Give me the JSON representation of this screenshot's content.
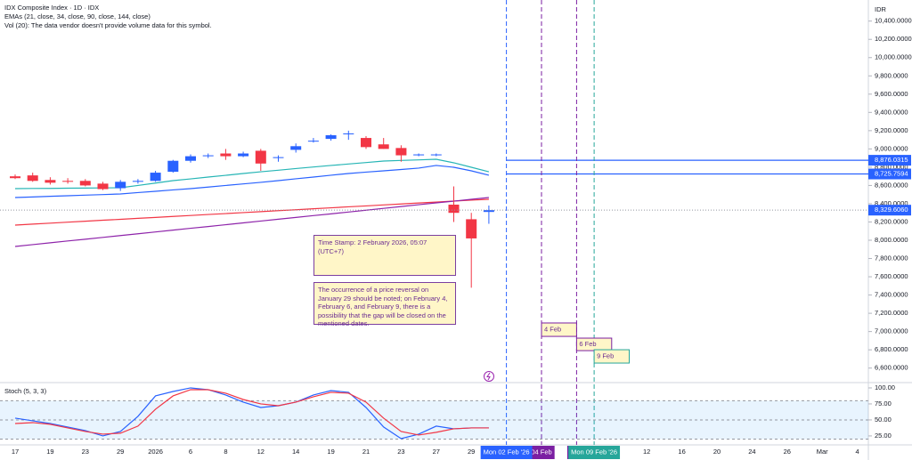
{
  "chart_data": [
    {
      "type": "candlestick",
      "title": "IDX Composite Index · 1D · IDX",
      "subtitle": "EMAs (21, close, 34, close, 90, close, 144, close)",
      "note": "Vol (20): The data vendor doesn't provide volume data for this symbol.",
      "currency": "IDR",
      "categories": [
        "17",
        null,
        "19",
        null,
        "23",
        null,
        "29",
        null,
        "2026",
        null,
        "6",
        null,
        "8",
        null,
        "12",
        null,
        "14",
        null,
        "19",
        null,
        "21",
        null,
        "23",
        null,
        "27",
        null,
        "29",
        null,
        "Mon 02 Feb '26",
        null,
        "04 Feb",
        null,
        "Fri 0",
        "Mon 09 Feb '26",
        null,
        null,
        "12",
        null,
        "16",
        null,
        "20",
        null,
        "24",
        null,
        "26",
        null,
        "Mar",
        null,
        "4"
      ],
      "open": [
        8700,
        8710,
        8660,
        8650,
        8650,
        8620,
        8570,
        8640,
        8650,
        8750,
        8870,
        8920,
        8950,
        8920,
        8980,
        8900,
        8990,
        9080,
        9110,
        9160,
        9120,
        9050,
        9010,
        8930,
        8930,
        8390,
        8230,
        8310,
        null,
        null,
        null,
        null,
        null,
        null,
        null,
        null,
        null,
        null,
        null,
        null,
        null,
        null,
        null,
        null,
        null,
        null,
        null,
        null,
        null
      ],
      "high": [
        8720,
        8740,
        8690,
        8680,
        8670,
        8640,
        8660,
        8670,
        8760,
        8880,
        8940,
        8950,
        9000,
        8970,
        9000,
        8930,
        9060,
        9120,
        9160,
        9200,
        9140,
        9120,
        9040,
        8950,
        8950,
        8590,
        8300,
        8380,
        null,
        null,
        null,
        null,
        null,
        null,
        null,
        null,
        null,
        null,
        null,
        null,
        null,
        null,
        null,
        null,
        null,
        null,
        null,
        null,
        null
      ],
      "low": [
        8670,
        8640,
        8610,
        8620,
        8590,
        8550,
        8540,
        8620,
        8640,
        8740,
        8850,
        8900,
        8880,
        8910,
        8760,
        8860,
        8960,
        9070,
        9090,
        9100,
        9000,
        9000,
        8860,
        8920,
        8920,
        8200,
        7480,
        8180,
        null,
        null,
        null,
        null,
        null,
        null,
        null,
        null,
        null,
        null,
        null,
        null,
        null,
        null,
        null,
        null,
        null,
        null,
        null,
        null,
        null
      ],
      "close": [
        8680,
        8650,
        8630,
        8640,
        8600,
        8560,
        8640,
        8650,
        8740,
        8870,
        8920,
        8930,
        8920,
        8950,
        8840,
        8910,
        9030,
        9090,
        9150,
        9170,
        9020,
        9000,
        8930,
        8940,
        8940,
        8300,
        8020,
        8329.606,
        null,
        null,
        null,
        null,
        null,
        null,
        null,
        null,
        null,
        null,
        null,
        null,
        null,
        null,
        null,
        null,
        null,
        null,
        null,
        null,
        null
      ],
      "up_color": "#2962ff",
      "down_color": "#f23645",
      "series": [
        {
          "name": "EMA 21",
          "color": "#26b5b5",
          "values": [
            8565,
            8567,
            8568,
            8570,
            8571,
            8573,
            8575,
            8600,
            8626,
            8653,
            8672,
            8692,
            8711,
            8731,
            8750,
            8767,
            8785,
            8802,
            8819,
            8835,
            8851,
            8867,
            8874,
            8880,
            8887,
            8848,
            8799,
            8750,
            null,
            null,
            null,
            null,
            null,
            null,
            null,
            null,
            null,
            null,
            null,
            null,
            null,
            null,
            null,
            null,
            null,
            null,
            null,
            null,
            null
          ]
        },
        {
          "name": "EMA 34",
          "color": "#2962ff",
          "values": [
            8468,
            8474,
            8481,
            8487,
            8494,
            8500,
            8507,
            8522,
            8536,
            8551,
            8565,
            8582,
            8600,
            8617,
            8634,
            8653,
            8673,
            8692,
            8712,
            8731,
            8746,
            8760,
            8775,
            8790,
            8819,
            8799,
            8760,
            8712,
            null,
            null,
            null,
            null,
            null,
            null,
            null,
            null,
            null,
            null,
            null,
            null,
            null,
            null,
            null,
            null,
            null,
            null,
            null,
            null,
            null
          ]
        },
        {
          "name": "EMA 90",
          "color": "#f23645",
          "values": [
            8166,
            8177,
            8187,
            8198,
            8208,
            8219,
            8229,
            8240,
            8250,
            8261,
            8271,
            8282,
            8292,
            8303,
            8313,
            8324,
            8334,
            8345,
            8355,
            8366,
            8376,
            8387,
            8397,
            8408,
            8418,
            8429,
            8439,
            8448,
            null,
            null,
            null,
            null,
            null,
            null,
            null,
            null,
            null,
            null,
            null,
            null,
            null,
            null,
            null,
            null,
            null,
            null,
            null,
            null,
            null
          ]
        },
        {
          "name": "EMA 144",
          "color": "#8e24aa",
          "values": [
            7932,
            7952,
            7972,
            7992,
            8011,
            8031,
            8051,
            8071,
            8091,
            8111,
            8131,
            8150,
            8170,
            8190,
            8210,
            8230,
            8250,
            8270,
            8289,
            8309,
            8329,
            8349,
            8369,
            8389,
            8409,
            8428,
            8448,
            8468,
            null,
            null,
            null,
            null,
            null,
            null,
            null,
            null,
            null,
            null,
            null,
            null,
            null,
            null,
            null,
            null,
            null,
            null,
            null,
            null,
            null
          ]
        }
      ],
      "ylim": [
        6441,
        10631
      ],
      "yticks": [
        {
          "value": 10400,
          "label": "10,400.0000"
        },
        {
          "value": 10200,
          "label": "10,200.0000"
        },
        {
          "value": 10000,
          "label": "10,000.0000"
        },
        {
          "value": 9800,
          "label": "9,800.0000"
        },
        {
          "value": 9600,
          "label": "9,600.0000"
        },
        {
          "value": 9400,
          "label": "9,400.0000"
        },
        {
          "value": 9200,
          "label": "9,200.0000"
        },
        {
          "value": 9000,
          "label": "9,000.0000"
        },
        {
          "value": 8800,
          "label": "8,800.0000"
        },
        {
          "value": 8600,
          "label": "8,600.0000"
        },
        {
          "value": 8400,
          "label": "8,400.0000"
        },
        {
          "value": 8200,
          "label": "8,200.0000"
        },
        {
          "value": 8000,
          "label": "8,000.0000"
        },
        {
          "value": 7800,
          "label": "7,800.0000"
        },
        {
          "value": 7600,
          "label": "7,600.0000"
        },
        {
          "value": 7400,
          "label": "7,400.0000"
        },
        {
          "value": 7200,
          "label": "7,200.0000"
        },
        {
          "value": 7000,
          "label": "7,000.0000"
        },
        {
          "value": 6800,
          "label": "6,800.0000"
        },
        {
          "value": 6600,
          "label": "6,600.0000"
        }
      ],
      "hlines": [
        {
          "value": 8876.0315,
          "label": "8,876.0315",
          "from": 28,
          "color": "#2962ff"
        },
        {
          "value": 8725.7594,
          "label": "8,725.7594",
          "from": 28,
          "color": "#2962ff"
        }
      ],
      "price_line": {
        "value": 8329.606,
        "label": "8,329.6060",
        "color": "#2962ff"
      },
      "highlights": [
        {
          "index": 30,
          "color": "#7b1fa2"
        },
        {
          "index": 32,
          "color": "#7b1fa2"
        },
        {
          "index": 28,
          "color": "#2962ff"
        },
        {
          "index": 33,
          "color": "#26a69a"
        }
      ],
      "boxes": [
        {
          "text": "4 Feb",
          "x": [
            30,
            32
          ],
          "y": [
            7094,
            6947
          ],
          "color": "#7b1fa2"
        },
        {
          "text": "6 Feb",
          "x": [
            32,
            34
          ],
          "y": [
            6928,
            6791
          ],
          "color": "#7b1fa2"
        },
        {
          "text": "9 Feb",
          "x": [
            33,
            35
          ],
          "y": [
            6801,
            6655
          ],
          "color": "#26a69a"
        }
      ],
      "notes": [
        "Time Stamp: 2 February 2026, 05:07 (UTC+7)",
        "The occurrence of a price reversal on January 29 should be noted; on February 4, February 6, and February 9, there is a possibility that the gap will be closed on the mentioned dates."
      ]
    },
    {
      "type": "line",
      "title": "Stoch (5, 3, 3)",
      "series": [
        {
          "name": "%K",
          "color": "#2962ff",
          "values": [
            52.8,
            48.6,
            44.4,
            38.9,
            33.3,
            25,
            31.9,
            55.6,
            87.5,
            94.4,
            100,
            97.2,
            88.9,
            77.8,
            69.4,
            72.2,
            77.8,
            88.9,
            95.8,
            93.1,
            69.4,
            38.9,
            20.8,
            27.8,
            40.3,
            36.1,
            37.5,
            37.5,
            null,
            null,
            null,
            null,
            null,
            null,
            null,
            null,
            null,
            null,
            null,
            null,
            null,
            null,
            null,
            null,
            null,
            null,
            null,
            null,
            null
          ]
        },
        {
          "name": "%D",
          "color": "#f23645",
          "values": [
            44.4,
            45.8,
            43.1,
            37.5,
            31.9,
            27.8,
            29.2,
            40.3,
            66.7,
            87.5,
            97.2,
            97.2,
            91.7,
            81.9,
            75,
            72.2,
            77.8,
            86.1,
            93.1,
            91.7,
            77.8,
            52.8,
            31.9,
            26.4,
            30.6,
            36.1,
            37.5,
            37.5,
            null,
            null,
            null,
            null,
            null,
            null,
            null,
            null,
            null,
            null,
            null,
            null,
            null,
            null,
            null,
            null,
            null,
            null,
            null,
            null,
            null
          ]
        }
      ],
      "band": [
        20,
        80
      ],
      "levels": [
        80,
        50,
        20
      ],
      "ylim": [
        11,
        108.3
      ],
      "yticks": [
        {
          "value": 100,
          "label": "100.00"
        },
        {
          "value": 75,
          "label": "75.00"
        },
        {
          "value": 50,
          "label": "50.00"
        },
        {
          "value": 25,
          "label": "25.00"
        }
      ]
    }
  ]
}
